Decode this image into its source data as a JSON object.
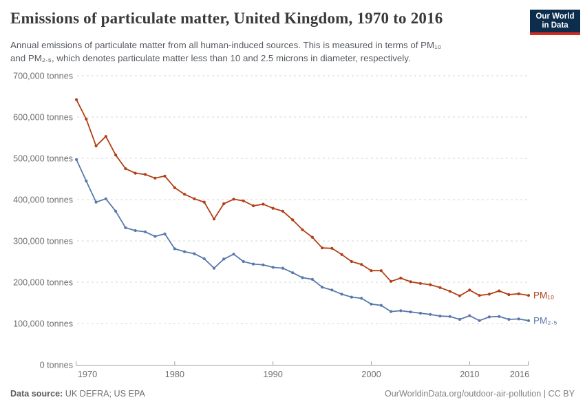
{
  "header": {
    "title": "Emissions of particulate matter, United Kingdom, 1970 to 2016",
    "subtitle_line1": "Annual emissions of particulate matter from all human-induced sources. This is measured in terms of PM₁₀",
    "subtitle_line2": "and PM₂.₅, which denotes particulate matter less than 10 and 2.5 microns in diameter, respectively.",
    "logo": {
      "line1": "Our World",
      "line2": "in Data",
      "bg_color": "#0d2d4d",
      "stripe_color": "#d42b21",
      "text_color": "#ffffff"
    }
  },
  "footer": {
    "source_label": "Data source:",
    "source_value": " UK DEFRA; US EPA",
    "credit": "OurWorldinData.org/outdoor-air-pollution | CC BY"
  },
  "chart_data": {
    "type": "line",
    "title": "Emissions of particulate matter, United Kingdom, 1970 to 2016",
    "xlabel": "",
    "ylabel": "tonnes",
    "ylim": [
      0,
      700000
    ],
    "y_tick_step": 100000,
    "y_tick_labels": [
      "0 tonnes",
      "100,000 tonnes",
      "200,000 tonnes",
      "300,000 tonnes",
      "400,000 tonnes",
      "500,000 tonnes",
      "600,000 tonnes",
      "700,000 tonnes"
    ],
    "x_ticks": [
      1970,
      1980,
      1990,
      2000,
      2010,
      2016
    ],
    "x_tick_labels": [
      "1970",
      "1980",
      "1990",
      "2000",
      "2010",
      "2016"
    ],
    "grid": "horizontal-dashed",
    "legend_position": "right-of-line-end",
    "x": [
      1970,
      1971,
      1972,
      1973,
      1974,
      1975,
      1976,
      1977,
      1978,
      1979,
      1980,
      1981,
      1982,
      1983,
      1984,
      1985,
      1986,
      1987,
      1988,
      1989,
      1990,
      1991,
      1992,
      1993,
      1994,
      1995,
      1996,
      1997,
      1998,
      1999,
      2000,
      2001,
      2002,
      2003,
      2004,
      2005,
      2006,
      2007,
      2008,
      2009,
      2010,
      2011,
      2012,
      2013,
      2014,
      2015,
      2016
    ],
    "series": [
      {
        "name": "PM₁₀",
        "color": "#b23e16",
        "values": [
          642000,
          595000,
          530000,
          553000,
          508000,
          475000,
          464000,
          461000,
          452000,
          457000,
          429000,
          413000,
          402000,
          394000,
          353000,
          390000,
          401000,
          397000,
          385000,
          389000,
          379000,
          372000,
          351000,
          327000,
          309000,
          283000,
          282000,
          267000,
          250000,
          243000,
          228000,
          228000,
          202000,
          210000,
          201000,
          197000,
          194000,
          187000,
          178000,
          167000,
          181000,
          168000,
          171000,
          179000,
          170000,
          172000,
          168000
        ]
      },
      {
        "name": "PM₂.₅",
        "color": "#5878ac",
        "values": [
          497000,
          445000,
          394000,
          402000,
          372000,
          332000,
          325000,
          322000,
          311000,
          317000,
          281000,
          274000,
          269000,
          257000,
          234000,
          256000,
          268000,
          250000,
          244000,
          242000,
          236000,
          234000,
          223000,
          211000,
          207000,
          188000,
          181000,
          171000,
          164000,
          161000,
          147000,
          144000,
          129000,
          131000,
          128000,
          125000,
          122000,
          118000,
          117000,
          110000,
          119000,
          107000,
          116000,
          117000,
          110000,
          111000,
          107000
        ]
      }
    ]
  }
}
